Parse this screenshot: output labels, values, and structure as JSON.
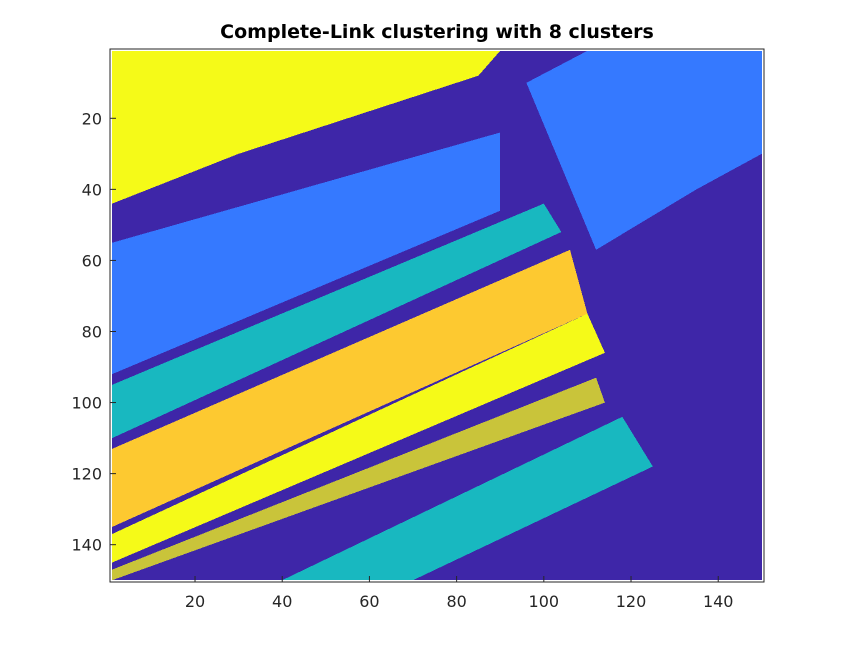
{
  "chart_data": {
    "type": "heatmap",
    "title": "Complete-Link clustering with 8 clusters",
    "xlabel": "",
    "ylabel": "",
    "xlim": [
      1,
      150
    ],
    "ylim": [
      1,
      150
    ],
    "y_reversed": true,
    "x_ticks": [
      20,
      40,
      60,
      80,
      100,
      120,
      140
    ],
    "y_ticks": [
      20,
      40,
      60,
      80,
      100,
      120,
      140
    ],
    "x_tick_labels": [
      "20",
      "40",
      "60",
      "80",
      "100",
      "120",
      "140"
    ],
    "y_tick_labels": [
      "20",
      "40",
      "60",
      "80",
      "100",
      "120",
      "140"
    ],
    "grid": false,
    "legend": "none",
    "num_clusters": 8,
    "cluster_colors": [
      "#3e26a8",
      "#3579ff",
      "#18b8c0",
      "#3dc06a",
      "#c9c43a",
      "#f5fa18",
      "#fdc930",
      "#5a4fe0"
    ],
    "regions": [
      {
        "cluster": 1,
        "label": "background",
        "polygon": [
          [
            1,
            1
          ],
          [
            150,
            1
          ],
          [
            150,
            150
          ],
          [
            1,
            150
          ]
        ]
      },
      {
        "cluster": 6,
        "label": "top-left field",
        "polygon": [
          [
            1,
            1
          ],
          [
            90,
            1
          ],
          [
            85,
            8
          ],
          [
            60,
            18
          ],
          [
            30,
            30
          ],
          [
            1,
            44
          ]
        ]
      },
      {
        "cluster": 2,
        "label": "top-right field",
        "polygon": [
          [
            110,
            1
          ],
          [
            150,
            1
          ],
          [
            150,
            30
          ],
          [
            135,
            40
          ],
          [
            112,
            57
          ],
          [
            96,
            10
          ]
        ]
      },
      {
        "cluster": 2,
        "label": "left band",
        "polygon": [
          [
            1,
            55
          ],
          [
            90,
            24
          ],
          [
            90,
            46
          ],
          [
            1,
            92
          ]
        ]
      },
      {
        "cluster": 3,
        "label": "cyan band",
        "polygon": [
          [
            1,
            95
          ],
          [
            100,
            44
          ],
          [
            104,
            52
          ],
          [
            1,
            110
          ]
        ]
      },
      {
        "cluster": 7,
        "label": "orange band",
        "polygon": [
          [
            1,
            113
          ],
          [
            106,
            57
          ],
          [
            110,
            75
          ],
          [
            1,
            135
          ]
        ]
      },
      {
        "cluster": 6,
        "label": "yellow band",
        "polygon": [
          [
            1,
            137
          ],
          [
            110,
            75
          ],
          [
            114,
            86
          ],
          [
            1,
            145
          ]
        ]
      },
      {
        "cluster": 5,
        "label": "olive band",
        "polygon": [
          [
            1,
            147
          ],
          [
            112,
            93
          ],
          [
            114,
            100
          ],
          [
            1,
            150
          ]
        ]
      },
      {
        "cluster": 3,
        "label": "lower cyan band",
        "polygon": [
          [
            40,
            150
          ],
          [
            118,
            104
          ],
          [
            125,
            118
          ],
          [
            70,
            150
          ]
        ]
      }
    ]
  }
}
